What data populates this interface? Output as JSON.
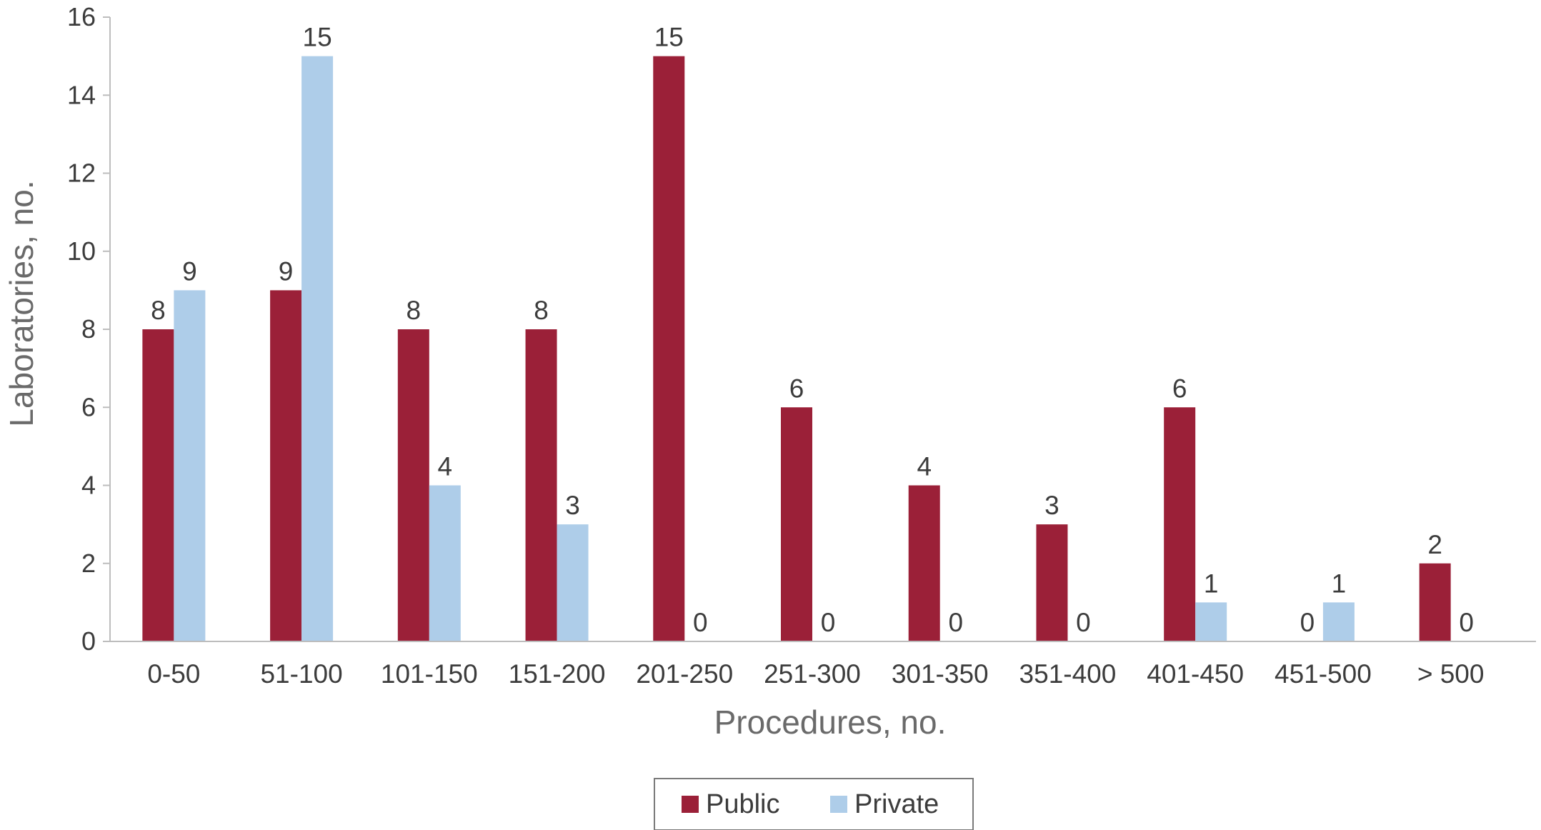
{
  "chart_data": {
    "type": "bar",
    "xlabel": "Procedures, no.",
    "ylabel": "Laboratories, no.",
    "ylim": [
      0,
      16
    ],
    "yticks": [
      0,
      2,
      4,
      6,
      8,
      10,
      12,
      14,
      16
    ],
    "grid": false,
    "legend_position": "bottom",
    "categories": [
      "0-50",
      "51-100",
      "101-150",
      "151-200",
      "201-250",
      "251-300",
      "301-350",
      "351-400",
      "401-450",
      "451-500",
      "> 500"
    ],
    "series": [
      {
        "name": "Public",
        "color": "#9b2038",
        "values": [
          8,
          9,
          8,
          8,
          15,
          6,
          4,
          3,
          6,
          0,
          2
        ]
      },
      {
        "name": "Private",
        "color": "#aecde9",
        "values": [
          9,
          15,
          4,
          3,
          0,
          0,
          0,
          0,
          1,
          1,
          0
        ]
      }
    ]
  }
}
